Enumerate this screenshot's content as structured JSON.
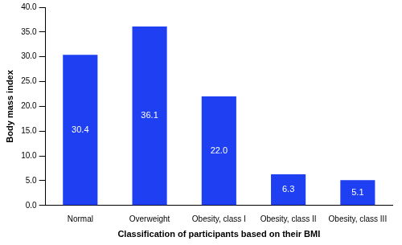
{
  "chart_data": {
    "type": "bar",
    "x_label": "Classification of participants based on their BMI",
    "y_label": "Body mass index",
    "categories": [
      "Normal",
      "Overweight",
      "Obesity, class I",
      "Obesity, class II",
      "Obesity, class III"
    ],
    "values": [
      30.4,
      36.1,
      22.0,
      6.3,
      5.1
    ],
    "value_labels": [
      "30.4",
      "36.1",
      "22.0",
      "6.3",
      "5.1"
    ],
    "color": "#1f3ff2",
    "ylim": [
      0,
      40
    ],
    "yticks": [
      {
        "value": 0,
        "label": "0.0"
      },
      {
        "value": 5,
        "label": "5.0"
      },
      {
        "value": 10,
        "label": "10.0"
      },
      {
        "value": 15,
        "label": "15.0"
      },
      {
        "value": 20,
        "label": "20.0"
      },
      {
        "value": 25,
        "label": "25.0"
      },
      {
        "value": 30,
        "label": "30.0"
      },
      {
        "value": 35,
        "label": "35.0"
      },
      {
        "value": 40,
        "label": "40.0"
      }
    ],
    "grid": false,
    "data_labels": true
  }
}
